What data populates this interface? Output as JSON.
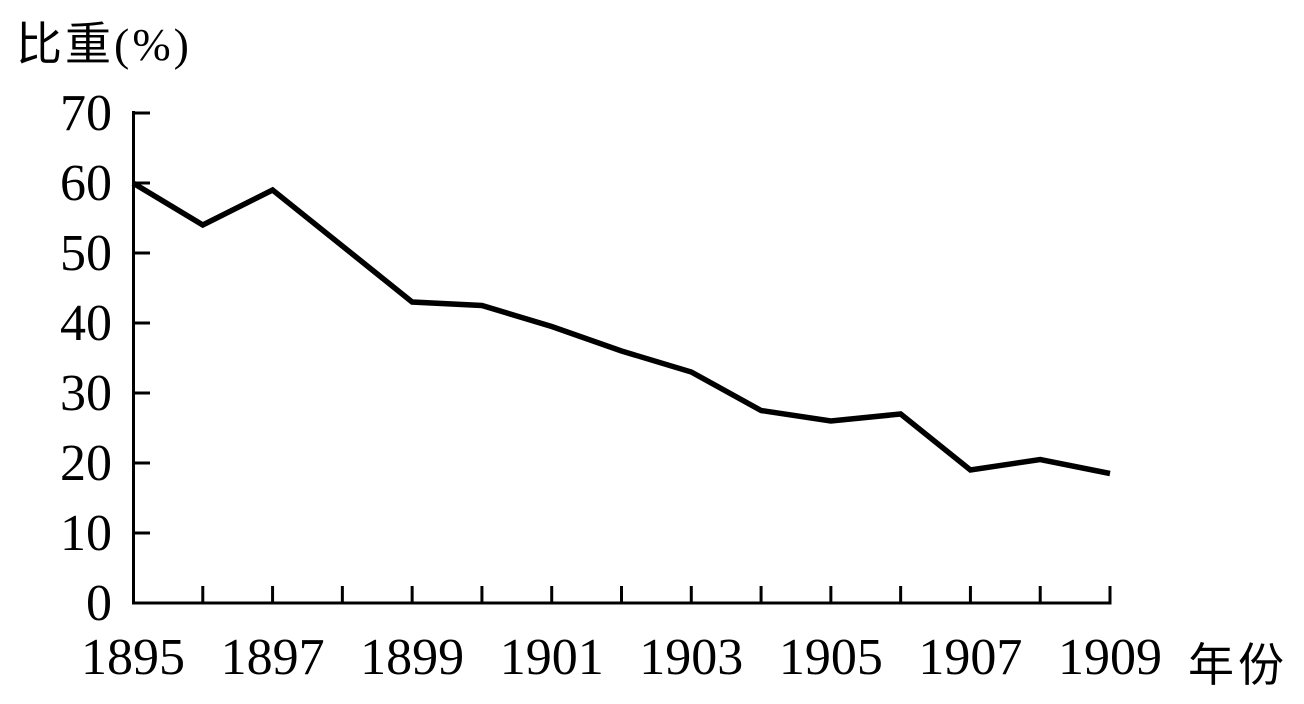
{
  "chart_data": {
    "type": "line",
    "title": "",
    "ylabel": "比重(%)",
    "xlabel": "年份",
    "x": [
      1895,
      1896,
      1897,
      1898,
      1899,
      1900,
      1901,
      1902,
      1903,
      1904,
      1905,
      1906,
      1907,
      1908,
      1909
    ],
    "values": [
      60,
      54,
      59,
      51,
      43,
      42.5,
      39.5,
      36,
      33,
      27.5,
      26,
      27,
      19,
      20.5,
      18.5
    ],
    "series_name": "比重",
    "ylim": [
      0,
      70
    ],
    "yticks": [
      0,
      10,
      20,
      30,
      40,
      50,
      60,
      70
    ],
    "ytick_labels": [
      "0",
      "10",
      "20",
      "30",
      "40",
      "50",
      "60",
      "70"
    ],
    "xtick_labels": [
      "1895",
      "1897",
      "1899",
      "1901",
      "1903",
      "1905",
      "1907",
      "1909"
    ],
    "grid": false,
    "legend": false,
    "line_color": "#000000",
    "background_color": "#ffffff"
  }
}
